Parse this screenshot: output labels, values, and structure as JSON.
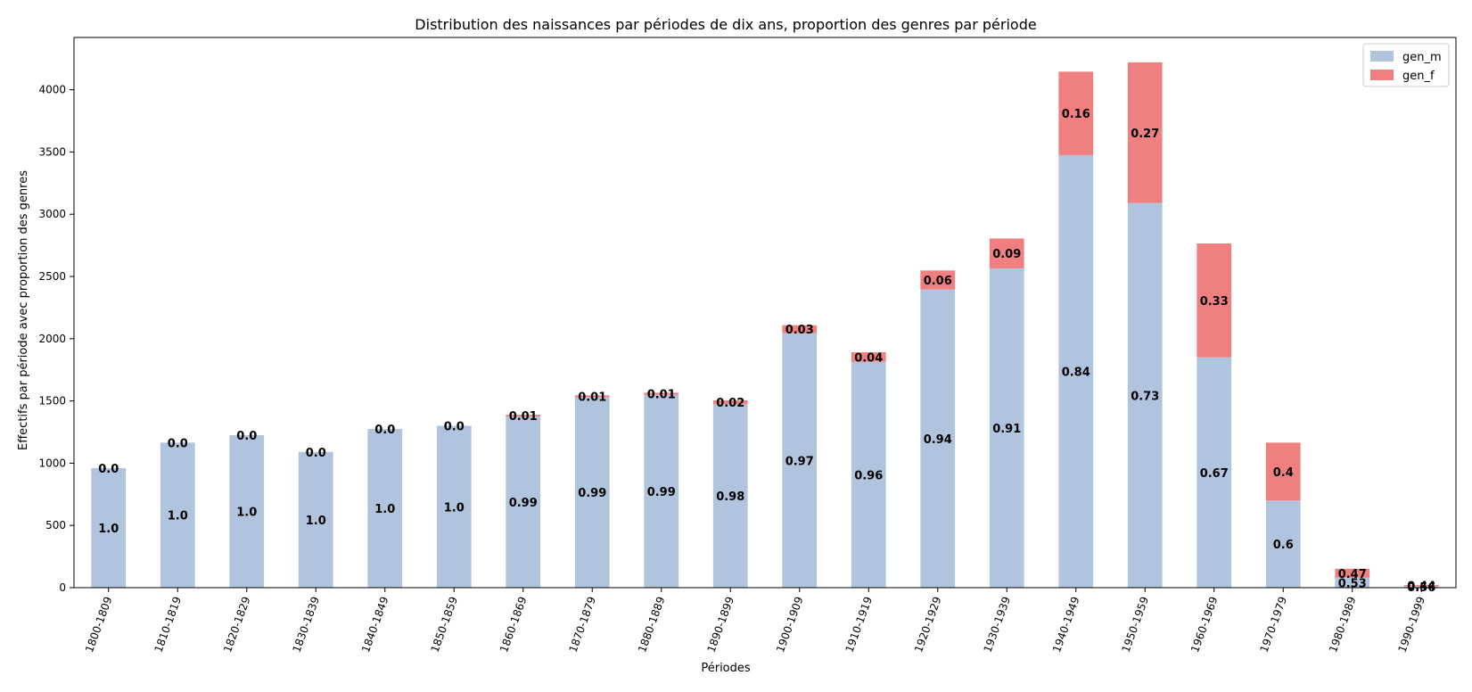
{
  "chart_data": {
    "type": "bar",
    "stacked": true,
    "title": "Distribution des naissances par périodes de dix ans, proportion des genres par période",
    "xlabel": "Périodes",
    "ylabel": "Effectifs par période avec proportion des genres",
    "ylim": [
      0,
      4420
    ],
    "yticks": [
      0,
      500,
      1000,
      1500,
      2000,
      2500,
      3000,
      3500,
      4000
    ],
    "legend_position": "top-right",
    "grid": false,
    "categories": [
      "1800-1809",
      "1810-1819",
      "1820-1829",
      "1830-1839",
      "1840-1849",
      "1850-1859",
      "1860-1869",
      "1870-1879",
      "1880-1889",
      "1890-1899",
      "1900-1909",
      "1910-1919",
      "1920-1929",
      "1930-1939",
      "1940-1949",
      "1950-1959",
      "1960-1969",
      "1970-1979",
      "1980-1989",
      "1990-1999"
    ],
    "series": [
      {
        "name": "gen_m",
        "color": "#b0c4de",
        "values": [
          960,
          1165,
          1225,
          1090,
          1275,
          1300,
          1375,
          1530,
          1550,
          1475,
          2045,
          1815,
          2395,
          2565,
          3475,
          3090,
          1850,
          700,
          80,
          12
        ],
        "labels": [
          "1.0",
          "1.0",
          "1.0",
          "1.0",
          "1.0",
          "1.0",
          "0.99",
          "0.99",
          "0.99",
          "0.98",
          "0.97",
          "0.96",
          "0.94",
          "0.91",
          "0.84",
          "0.73",
          "0.67",
          "0.6",
          "0.53",
          "0.56"
        ]
      },
      {
        "name": "gen_f",
        "color": "#f08080",
        "values": [
          0,
          0,
          0,
          0,
          0,
          0,
          14,
          15,
          16,
          30,
          63,
          76,
          153,
          240,
          670,
          1130,
          915,
          465,
          72,
          9
        ],
        "labels": [
          "0.0",
          "0.0",
          "0.0",
          "0.0",
          "0.0",
          "0.0",
          "0.01",
          "0.01",
          "0.01",
          "0.02",
          "0.03",
          "0.04",
          "0.06",
          "0.09",
          "0.16",
          "0.27",
          "0.33",
          "0.4",
          "0.47",
          "0.44"
        ]
      }
    ]
  }
}
